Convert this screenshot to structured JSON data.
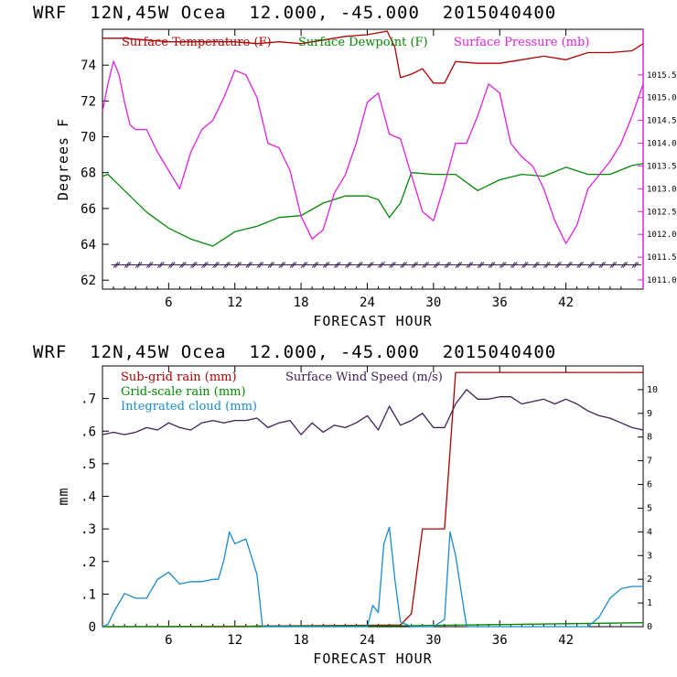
{
  "chart_data": [
    {
      "type": "line",
      "title": "WRF  12N,45W Ocea  12.000, -45.000  2015040400",
      "xlabel": "FORECAST HOUR",
      "ylabel": "Degrees F",
      "xlim": [
        0,
        49
      ],
      "ylim": [
        61.5,
        76
      ],
      "y2lim": [
        1010.8,
        1016.5
      ],
      "xticks": [
        "6",
        "12",
        "18",
        "24",
        "30",
        "36",
        "42"
      ],
      "yticks": [
        "62",
        "64",
        "66",
        "68",
        "70",
        "72",
        "74"
      ],
      "y2ticks": [
        "1011.0",
        "1011.5",
        "1012.0",
        "1012.5",
        "1013.0",
        "1013.5",
        "1014.0",
        "1014.5",
        "1015.0",
        "1015.5"
      ],
      "series": [
        {
          "name": "Surface Temperature (F)",
          "color": "#b00000",
          "axis": "left",
          "x": [
            0,
            2,
            4,
            6,
            8,
            10,
            12,
            14,
            16,
            18,
            20,
            22,
            24,
            25,
            25.8,
            26.5,
            27,
            28,
            29,
            30,
            31,
            32,
            34,
            36,
            38,
            40,
            42,
            44,
            46,
            48,
            49
          ],
          "values": [
            75.5,
            75.5,
            75.4,
            75.3,
            75.3,
            75.3,
            75.3,
            75.2,
            75.3,
            75.2,
            75.4,
            75.6,
            75.7,
            75.8,
            75.9,
            75.0,
            73.3,
            73.5,
            73.8,
            73.0,
            73.0,
            74.2,
            74.1,
            74.1,
            74.3,
            74.5,
            74.3,
            74.7,
            74.7,
            74.8,
            75.2
          ]
        },
        {
          "name": "Surface Dewpoint (F)",
          "color": "#008800",
          "axis": "left",
          "x": [
            0,
            0.5,
            2,
            4,
            6,
            8,
            10,
            11,
            12,
            14,
            16,
            18,
            20,
            22,
            24,
            25,
            26,
            27,
            28,
            30,
            32,
            34,
            36,
            38,
            40,
            42,
            44,
            46,
            48,
            49
          ],
          "values": [
            67.8,
            67.9,
            67.0,
            65.8,
            64.9,
            64.3,
            63.9,
            64.3,
            64.7,
            65.0,
            65.5,
            65.6,
            66.3,
            66.7,
            66.7,
            66.5,
            65.5,
            66.3,
            68.0,
            67.9,
            67.9,
            67.0,
            67.6,
            67.9,
            67.8,
            68.3,
            67.9,
            67.9,
            68.4,
            68.5
          ]
        },
        {
          "name": "Surface Pressure (mb)",
          "color": "#e020e0",
          "axis": "right",
          "x": [
            0,
            0.5,
            1,
            1.5,
            2,
            2.5,
            3,
            4,
            5,
            6,
            7,
            8,
            9,
            10,
            11,
            12,
            13,
            14,
            15,
            16,
            17,
            18,
            19,
            20,
            21,
            22,
            23,
            24,
            25,
            26,
            27,
            28,
            29,
            30,
            31,
            32,
            33,
            34,
            35,
            36,
            37,
            38,
            39,
            40,
            41,
            42,
            43,
            44,
            45,
            46,
            47,
            48,
            49
          ],
          "values": [
            1014.7,
            1015.3,
            1015.8,
            1015.5,
            1014.9,
            1014.4,
            1014.3,
            1014.3,
            1013.8,
            1013.4,
            1013.0,
            1013.8,
            1014.3,
            1014.5,
            1015.0,
            1015.6,
            1015.5,
            1015.0,
            1014.0,
            1013.9,
            1013.4,
            1012.4,
            1011.9,
            1012.1,
            1012.9,
            1013.3,
            1014.0,
            1014.9,
            1015.1,
            1014.2,
            1014.1,
            1013.3,
            1012.5,
            1012.3,
            1013.1,
            1014.0,
            1014.0,
            1014.6,
            1015.3,
            1015.1,
            1014.0,
            1013.7,
            1013.5,
            1013.0,
            1012.3,
            1011.8,
            1012.2,
            1013.0,
            1013.3,
            1013.6,
            1014.0,
            1014.6,
            1015.3
          ]
        },
        {
          "name": "Wind barbs",
          "color": "#40205a",
          "axis": "left",
          "style": "barbs",
          "values": [
            62.85
          ]
        }
      ],
      "legend": [
        "Surface Temperature (F)",
        "Surface Dewpoint (F)",
        "Surface Pressure (mb)"
      ]
    },
    {
      "type": "line",
      "title": "WRF  12N,45W Ocea  12.000, -45.000  2015040400",
      "xlabel": "FORECAST HOUR",
      "ylabel": "mm",
      "xlim": [
        0,
        49
      ],
      "ylim": [
        0,
        0.8
      ],
      "y2lim": [
        0,
        11
      ],
      "xticks": [
        "6",
        "12",
        "18",
        "24",
        "30",
        "36",
        "42"
      ],
      "yticks": [
        "0",
        ".1",
        ".2",
        ".3",
        ".4",
        ".5",
        ".6",
        ".7"
      ],
      "y2ticks": [
        "0",
        "1",
        "2",
        "3",
        "4",
        "5",
        "6",
        "7",
        "8",
        "9",
        "10"
      ],
      "series": [
        {
          "name": "Sub-grid rain (mm)",
          "color": "#aa0000",
          "axis": "left",
          "x": [
            0,
            13,
            14,
            27,
            28,
            29,
            30,
            31,
            32,
            49
          ],
          "values": [
            0,
            0,
            0.002,
            0.005,
            0.04,
            0.3,
            0.3,
            0.3,
            0.78,
            0.78
          ]
        },
        {
          "name": "Grid-scale rain (mm)",
          "color": "#008800",
          "axis": "left",
          "x": [
            0,
            28,
            49
          ],
          "values": [
            0,
            0.003,
            0.012
          ]
        },
        {
          "name": "Integrated cloud (mm)",
          "color": "#1a8ad0",
          "axis": "right",
          "x": [
            0,
            0.5,
            1,
            2,
            3,
            4,
            5,
            6,
            7,
            8,
            9,
            10,
            10.5,
            11,
            11.5,
            12,
            13,
            14,
            14.5,
            24,
            24.5,
            25,
            25.5,
            26,
            26.5,
            27,
            28,
            30,
            31,
            31.5,
            32,
            33,
            34,
            44,
            45,
            46,
            47,
            48,
            49
          ],
          "values": [
            0,
            0.1,
            0.6,
            1.4,
            1.2,
            1.2,
            2.0,
            2.3,
            1.8,
            1.9,
            1.9,
            2.0,
            2.0,
            2.8,
            4.0,
            3.5,
            3.7,
            2.2,
            0,
            0,
            0.9,
            0.6,
            3.5,
            4.2,
            2.0,
            0.2,
            0,
            0,
            0.3,
            4.0,
            3.0,
            0,
            0,
            0,
            0.4,
            1.2,
            1.6,
            1.7,
            1.7
          ]
        },
        {
          "name": "Surface Wind Speed (m/s)",
          "color": "#40205a",
          "axis": "right",
          "x": [
            0,
            1,
            2,
            3,
            4,
            5,
            6,
            7,
            8,
            9,
            10,
            11,
            12,
            13,
            14,
            15,
            16,
            17,
            18,
            19,
            20,
            21,
            22,
            23,
            24,
            25,
            26,
            27,
            28,
            29,
            30,
            31,
            32,
            33,
            34,
            35,
            36,
            37,
            38,
            39,
            40,
            41,
            42,
            43,
            44,
            45,
            46,
            47,
            48,
            49
          ],
          "values": [
            8.1,
            8.2,
            8.1,
            8.2,
            8.4,
            8.3,
            8.6,
            8.4,
            8.3,
            8.6,
            8.7,
            8.6,
            8.7,
            8.7,
            8.8,
            8.4,
            8.6,
            8.7,
            8.1,
            8.6,
            8.2,
            8.5,
            8.4,
            8.6,
            8.9,
            8.3,
            9.3,
            8.5,
            8.7,
            9.0,
            8.4,
            8.4,
            9.4,
            10.0,
            9.6,
            9.6,
            9.7,
            9.7,
            9.4,
            9.5,
            9.6,
            9.4,
            9.6,
            9.4,
            9.1,
            8.9,
            8.8,
            8.6,
            8.4,
            8.3
          ]
        }
      ],
      "legend": [
        "Sub-grid rain (mm)",
        "Surface Wind Speed (m/s)",
        "Grid-scale rain (mm)",
        "Integrated cloud (mm)"
      ]
    }
  ]
}
